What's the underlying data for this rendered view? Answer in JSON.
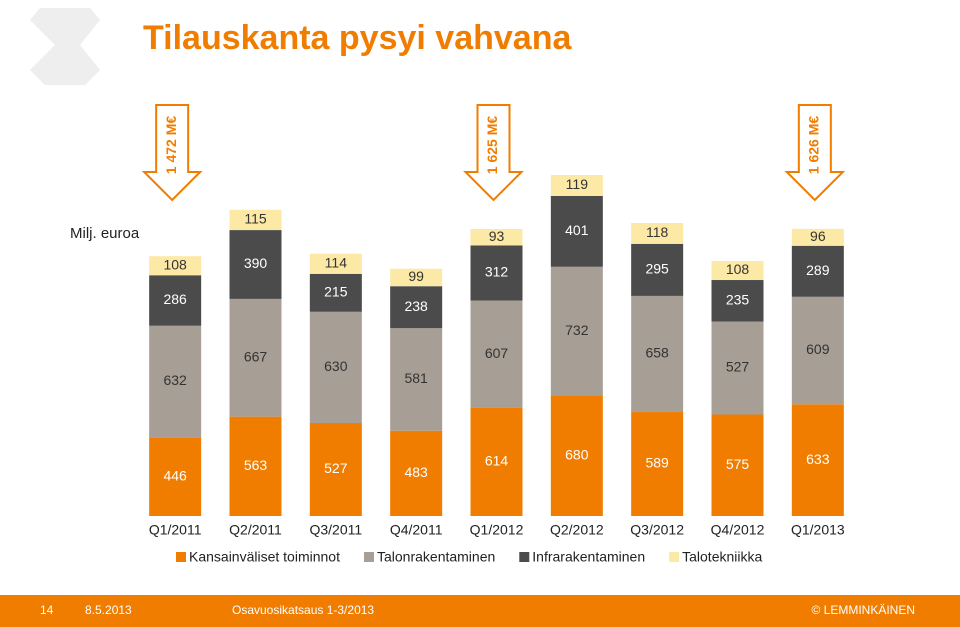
{
  "chart_data": {
    "type": "stacked_bar",
    "title": "Tilauskanta pysyi vahvana",
    "y_label": "Milj. euroa",
    "categories": [
      "Q1/2011",
      "Q2/2011",
      "Q3/2011",
      "Q4/2011",
      "Q1/2012",
      "Q2/2012",
      "Q3/2012",
      "Q4/2012",
      "Q1/2013"
    ],
    "series": [
      {
        "name": "Kansainväliset toiminnot",
        "color": "#f07d00",
        "values": [
          446,
          563,
          527,
          483,
          614,
          680,
          589,
          575,
          633
        ]
      },
      {
        "name": "Talonrakentaminen",
        "color": "#a79f95",
        "values": [
          632,
          667,
          630,
          581,
          607,
          732,
          658,
          527,
          609
        ]
      },
      {
        "name": "Infrarakentaminen",
        "color": "#4b4b4b",
        "values": [
          286,
          390,
          215,
          238,
          312,
          401,
          295,
          235,
          289
        ]
      },
      {
        "name": "Talotekniikka",
        "color": "#fde9a6",
        "values": [
          108,
          115,
          114,
          99,
          93,
          119,
          118,
          108,
          96
        ]
      }
    ],
    "ylim": [
      0,
      2000
    ],
    "annotations": [
      {
        "label": "1 472 M€",
        "category": "Q1/2011"
      },
      {
        "label": "1 625 M€",
        "category": "Q1/2012"
      },
      {
        "label": "1 626 M€",
        "category": "Q1/2013"
      }
    ]
  },
  "footer": {
    "page": "14",
    "date": "8.5.2013",
    "title": "Osavuosikatsaus 1-3/2013",
    "copyright": "© LEMMINKÄINEN"
  }
}
